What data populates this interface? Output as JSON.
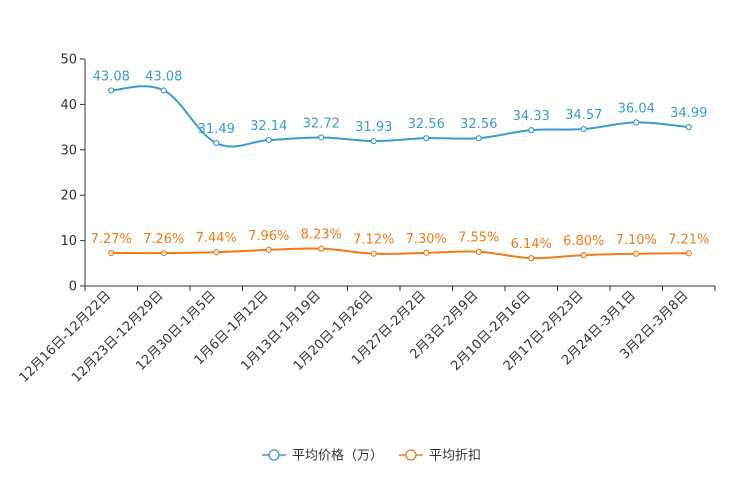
{
  "chart_data": {
    "type": "line",
    "title": "",
    "xlabel": "",
    "ylabel": "",
    "ylim": [
      0,
      50
    ],
    "yticks": [
      0,
      10,
      20,
      30,
      40,
      50
    ],
    "categories": [
      "12月16日-12月22日",
      "12月23日-12月29日",
      "12月30日-1月5日",
      "1月6日-1月12日",
      "1月13日-1月19日",
      "1月20日-1月26日",
      "1月27日-2月2日",
      "2月3日-2月9日",
      "2月10日-2月16日",
      "2月17日-2月23日",
      "2月24日-3月1日",
      "3月2日-3月8日"
    ],
    "series": [
      {
        "name": "平均价格（万）",
        "color": "#3a9bce",
        "values": [
          43.08,
          43.08,
          31.49,
          32.14,
          32.72,
          31.93,
          32.56,
          32.56,
          34.33,
          34.57,
          36.04,
          34.99
        ],
        "labels": [
          "43.08",
          "43.08",
          "31.49",
          "32.14",
          "32.72",
          "31.93",
          "32.56",
          "32.56",
          "34.33",
          "34.57",
          "36.04",
          "34.99"
        ]
      },
      {
        "name": "平均折扣",
        "color": "#f07b19",
        "values": [
          7.27,
          7.26,
          7.44,
          7.96,
          8.23,
          7.12,
          7.3,
          7.55,
          6.14,
          6.8,
          7.1,
          7.21
        ],
        "labels": [
          "7.27%",
          "7.26%",
          "7.44%",
          "7.96%",
          "8.23%",
          "7.12%",
          "7.30%",
          "7.55%",
          "6.14%",
          "6.80%",
          "7.10%",
          "7.21%"
        ]
      }
    ],
    "legend": "bottom-center",
    "grid": false
  }
}
